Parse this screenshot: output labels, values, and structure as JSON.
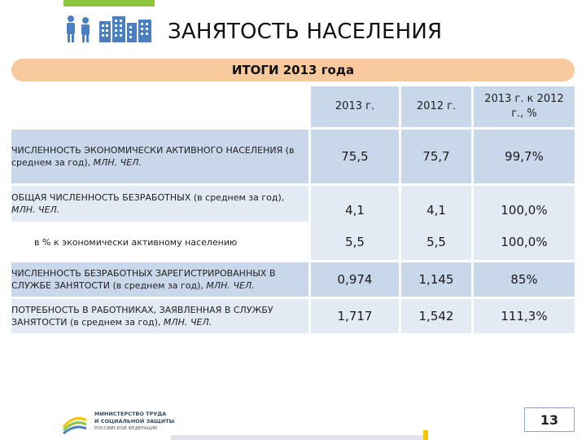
{
  "header": {
    "title": "ЗАНЯТОСТЬ НАСЕЛЕНИЯ",
    "subtitle": "ИТОГИ 2013 года",
    "accent_color": "#8cc63f",
    "icon_color": "#4a7fc1"
  },
  "table": {
    "columns": [
      "2013 г.",
      "2012 г.",
      "2013 г. к 2012 г., %"
    ],
    "rows": [
      {
        "label_main": "ЧИСЛЕННОСТЬ ЭКОНОМИЧЕСКИ АКТИВНОГО НАСЕЛЕНИЯ",
        "label_note": "(в среднем за год), ",
        "label_unit": "МЛН. ЧЕЛ.",
        "values": [
          "75,5",
          "75,7",
          "99,7%"
        ]
      },
      {
        "label_main": "ОБЩАЯ ЧИСЛЕННОСТЬ БЕЗРАБОТНЫХ",
        "label_note": " (в среднем за год), ",
        "label_unit": "МЛН. ЧЕЛ.",
        "values": [
          "4,1",
          "4,1",
          "100,0%"
        ]
      },
      {
        "label_main": "",
        "label_note": "в % к экономически активному населению",
        "label_unit": "",
        "values": [
          "5,5",
          "5,5",
          "100,0%"
        ]
      },
      {
        "label_main": "ЧИСЛЕННОСТЬ БЕЗРАБОТНЫХ ЗАРЕГИСТРИРОВАННЫХ В СЛУЖБЕ ЗАНЯТОСТИ",
        "label_note": " (в среднем за год), ",
        "label_unit": "МЛН. ЧЕЛ.",
        "values": [
          "0,974",
          "1,145",
          "85%"
        ]
      },
      {
        "label_main": "ПОТРЕБНОСТЬ В РАБОТНИКАХ, ЗАЯВЛЕННАЯ В СЛУЖБУ ЗАНЯТОСТИ",
        "label_note": " (в среднем за год), ",
        "label_unit": "МЛН. ЧЕЛ.",
        "values": [
          "1,717",
          "1,542",
          "111,3%"
        ]
      }
    ]
  },
  "footer": {
    "ministry_line1": "МИНИСТЕРСТВО ТРУДА",
    "ministry_line2": "И СОЦИАЛЬНОЙ ЗАЩИТЫ",
    "ministry_line3": "РОССИЙСКОЙ ФЕДЕРАЦИИ",
    "page_number": "13"
  }
}
